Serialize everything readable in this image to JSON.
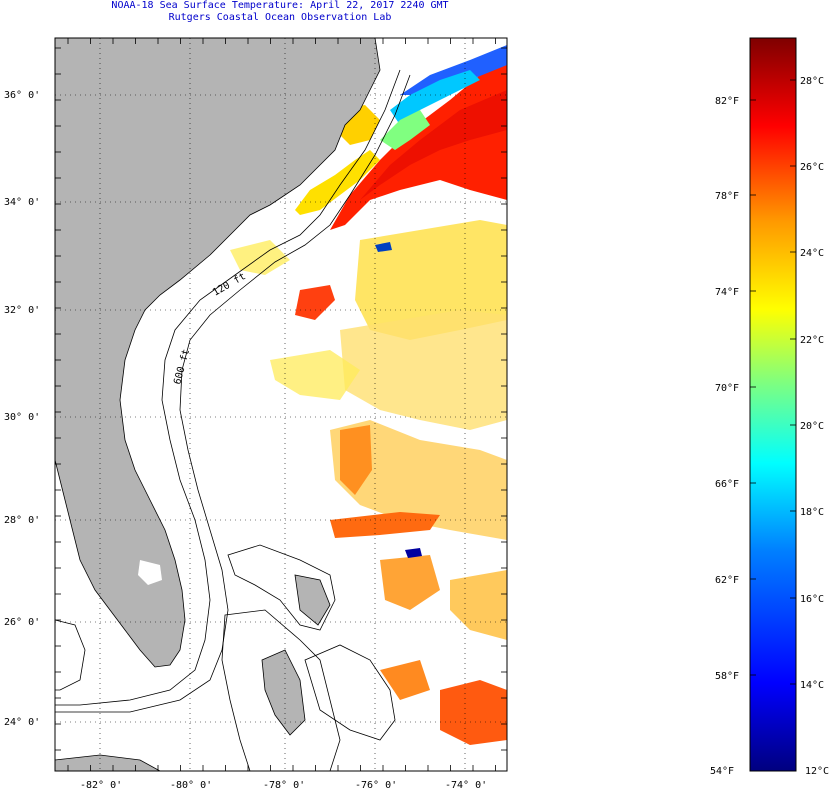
{
  "header": {
    "line1": "NOAA-18 Sea Surface Temperature:  April 22, 2017 2240 GMT",
    "line2": "Rutgers Coastal Ocean Observation Lab"
  },
  "map": {
    "lat_labels": [
      "36° 0'",
      "34° 0'",
      "32° 0'",
      "30° 0'",
      "28° 0'",
      "26° 0'",
      "24° 0'"
    ],
    "lon_labels": [
      "-82° 0'",
      "-80° 0'",
      "-78° 0'",
      "-76° 0'",
      "-74° 0'"
    ],
    "contour_labels": [
      "120 ft",
      "600 ft"
    ],
    "land_color": "#b4b4b4"
  },
  "colorbar": {
    "f_labels": [
      "82°F",
      "78°F",
      "74°F",
      "70°F",
      "66°F",
      "62°F",
      "58°F",
      "54°F"
    ],
    "c_labels": [
      "28°C",
      "26°C",
      "24°C",
      "22°C",
      "20°C",
      "18°C",
      "16°C",
      "14°C",
      "12°C"
    ],
    "colors_bottom_to_top": [
      "#00007f",
      "#0000ff",
      "#007fff",
      "#00ffff",
      "#7fff7f",
      "#ffff00",
      "#ff7f00",
      "#ff0000",
      "#7f0000"
    ]
  }
}
